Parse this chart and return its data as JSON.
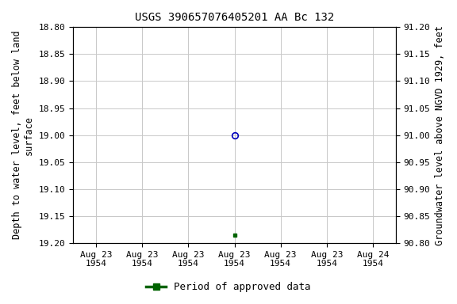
{
  "title": "USGS 390657076405201 AA Bc 132",
  "ylabel_left": "Depth to water level, feet below land\nsurface",
  "ylabel_right": "Groundwater level above NGVD 1929, feet",
  "ylim_left_top": 18.8,
  "ylim_left_bottom": 19.2,
  "ylim_right_top": 91.2,
  "ylim_right_bottom": 90.8,
  "yticks_left": [
    18.8,
    18.85,
    18.9,
    18.95,
    19.0,
    19.05,
    19.1,
    19.15,
    19.2
  ],
  "yticks_right": [
    91.2,
    91.15,
    91.1,
    91.05,
    91.0,
    90.95,
    90.9,
    90.85,
    90.8
  ],
  "data_points": [
    {
      "x": 3.0,
      "depth": 19.0,
      "marker": "o",
      "color": "#0000bb",
      "filled": false,
      "markersize": 5.5
    },
    {
      "x": 3.0,
      "depth": 19.185,
      "marker": "s",
      "color": "#006400",
      "filled": true,
      "markersize": 3.5
    }
  ],
  "xtick_positions": [
    0,
    1,
    2,
    3,
    4,
    5,
    6
  ],
  "xtick_labels": [
    "Aug 23\n1954",
    "Aug 23\n1954",
    "Aug 23\n1954",
    "Aug 23\n1954",
    "Aug 23\n1954",
    "Aug 23\n1954",
    "Aug 24\n1954"
  ],
  "xlim": [
    -0.5,
    6.5
  ],
  "legend_label": "Period of approved data",
  "legend_color": "#006400",
  "background_color": "#ffffff",
  "grid_color": "#c8c8c8",
  "title_fontsize": 10,
  "label_fontsize": 8.5,
  "tick_fontsize": 8,
  "legend_fontsize": 9
}
